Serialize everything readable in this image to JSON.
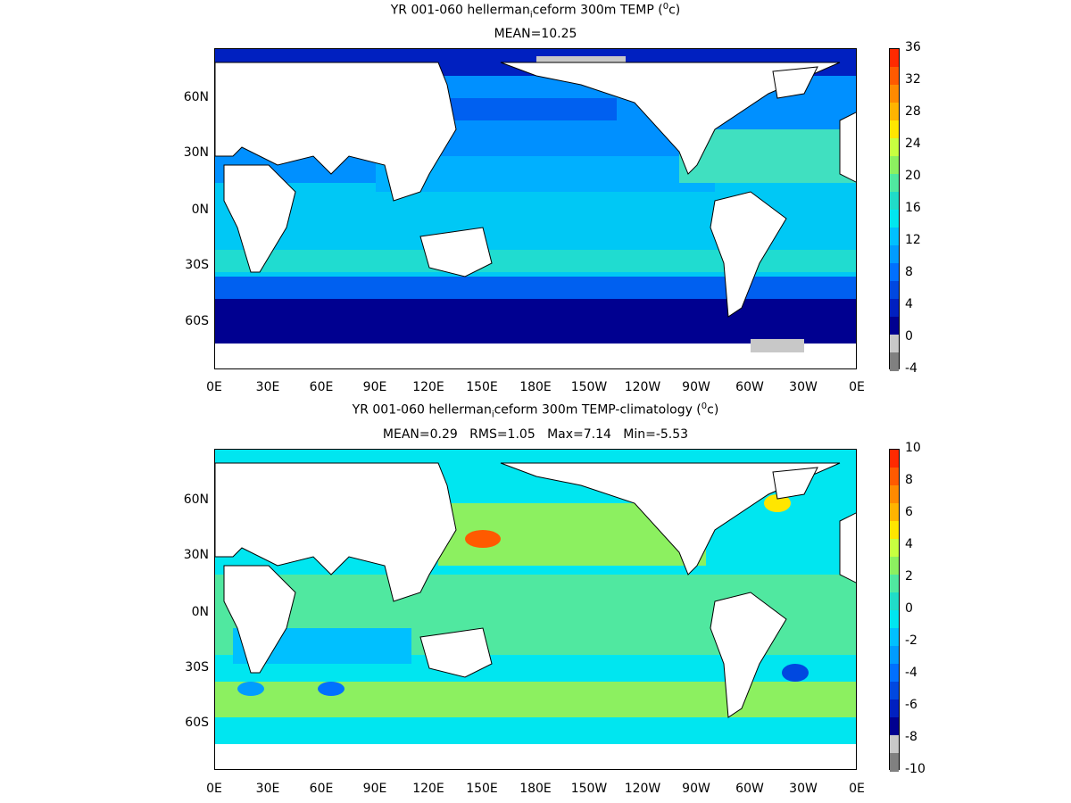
{
  "panels": [
    {
      "title_pre": "YR 001-060 hellerman",
      "title_sub": "i",
      "title_post": "ceform 300m TEMP (",
      "title_sup": "0",
      "title_end": "c)",
      "subtitle": "MEAN=10.25",
      "colorbar": {
        "labels": [
          "36",
          "32",
          "28",
          "24",
          "20",
          "16",
          "12",
          "8",
          "4",
          "0",
          "-4"
        ],
        "colors": [
          "#ff2a00",
          "#ff5a00",
          "#ff8a00",
          "#ffb400",
          "#ffe600",
          "#c8ff40",
          "#8cf060",
          "#50e8a0",
          "#20dcc8",
          "#00e6f0",
          "#00c0ff",
          "#009cff",
          "#0070ff",
          "#0048e0",
          "#0020c0",
          "#000090",
          "#c8c8c8",
          "#808080"
        ]
      },
      "chart_data": {
        "type": "heatmap",
        "variable": "300m TEMP",
        "units": "oC",
        "mean": 10.25,
        "colorbar_range": [
          -4,
          36
        ],
        "colorbar_interval": 2,
        "x_ticks": [
          "0E",
          "30E",
          "60E",
          "90E",
          "120E",
          "150E",
          "180E",
          "150W",
          "120W",
          "90W",
          "60W",
          "30W",
          "0E"
        ],
        "y_ticks": [
          "60N",
          "30N",
          "0N",
          "30S",
          "60S"
        ]
      }
    },
    {
      "title_pre": "YR 001-060 hellerman",
      "title_sub": "i",
      "title_post": "ceform 300m TEMP-climatology (",
      "title_sup": "0",
      "title_end": "c)",
      "subtitle": "MEAN=0.29   RMS=1.05   Max=7.14   Min=-5.53",
      "colorbar": {
        "labels": [
          "10",
          "8",
          "6",
          "4",
          "2",
          "0",
          "-2",
          "-4",
          "-6",
          "-8",
          "-10"
        ],
        "colors": [
          "#ff2a00",
          "#ff5a00",
          "#ff8a00",
          "#ffb400",
          "#ffe600",
          "#c8ff40",
          "#8cf060",
          "#50e8a0",
          "#20dcc8",
          "#00e6f0",
          "#00c0ff",
          "#009cff",
          "#0070ff",
          "#0048e0",
          "#0020c0",
          "#000090",
          "#c8c8c8",
          "#808080"
        ]
      },
      "chart_data": {
        "type": "heatmap",
        "variable": "300m TEMP-climatology",
        "units": "oC",
        "mean": 0.29,
        "rms": 1.05,
        "max": 7.14,
        "min": -5.53,
        "colorbar_range": [
          -10,
          10
        ],
        "x_ticks": [
          "0E",
          "30E",
          "60E",
          "90E",
          "120E",
          "150E",
          "180E",
          "150W",
          "120W",
          "90W",
          "60W",
          "30W",
          "0E"
        ],
        "y_ticks": [
          "60N",
          "30N",
          "0N",
          "30S",
          "60S"
        ]
      }
    }
  ]
}
